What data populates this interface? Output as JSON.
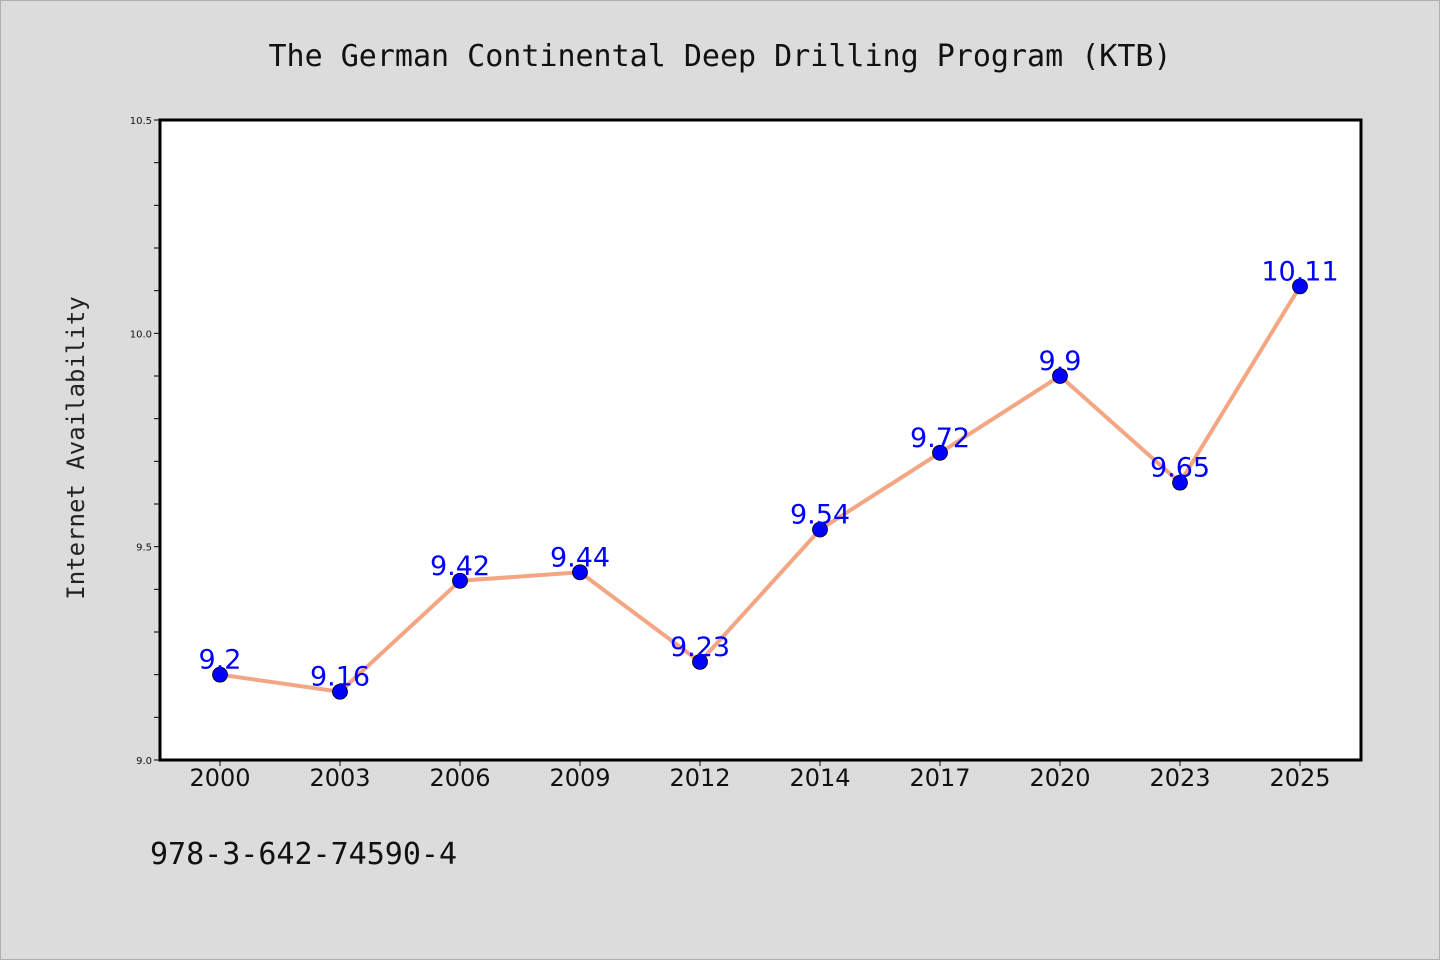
{
  "chart_data": {
    "type": "line",
    "title": "The German Continental Deep Drilling Program (KTB)",
    "xlabel": "",
    "ylabel": "Internet Availability",
    "categories": [
      "2000",
      "2003",
      "2006",
      "2009",
      "2012",
      "2014",
      "2017",
      "2020",
      "2023",
      "2025"
    ],
    "series": [
      {
        "values": [
          9.2,
          9.16,
          9.42,
          9.44,
          9.23,
          9.54,
          9.72,
          9.9,
          9.65,
          10.11
        ],
        "line_color": "#f4a582",
        "marker_color": "#0000ff"
      }
    ],
    "data_labels": [
      "9.2",
      "9.16",
      "9.42",
      "9.44",
      "9.23",
      "9.54",
      "9.72",
      "9.9",
      "9.65",
      "10.11"
    ],
    "label_color": "#0000ff",
    "ylim": [
      9.0,
      10.5
    ],
    "yticks": [
      "9.0",
      "9.5",
      "10.0",
      "10.5"
    ],
    "grid": false,
    "legend": "none"
  },
  "footnote": "978-3-642-74590-4"
}
